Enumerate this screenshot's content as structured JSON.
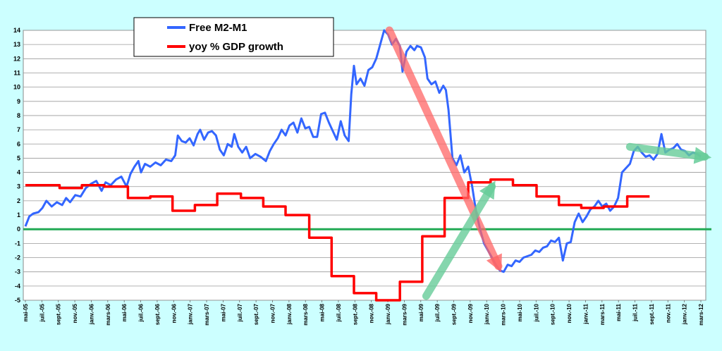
{
  "chart_data": {
    "type": "line",
    "title": "",
    "xlabel": "",
    "ylabel": "",
    "ylim": [
      -5,
      14
    ],
    "yticks": [
      14,
      13,
      12,
      11,
      10,
      9,
      8,
      7,
      6,
      5,
      4,
      3,
      2,
      1,
      0,
      -1,
      -2,
      -3,
      -4,
      -5
    ],
    "xticks": [
      "mai-05",
      "juil.-05",
      "sept.-05",
      "nov.-05",
      "janv.-06",
      "mars-06",
      "mai-06",
      "juil.-06",
      "sept.-06",
      "nov.-06",
      "janv.-07",
      "mars-07",
      "mai-07",
      "juil.-07",
      "sept.-07",
      "nov.-07",
      "janv.-08",
      "mars-08",
      "mai-08",
      "juil.-08",
      "sept.-08",
      "nov.-08",
      "janv.-09",
      "mars-09",
      "mai-09",
      "juil.-09",
      "sept.-09",
      "nov.-09",
      "janv.-10",
      "mars-10",
      "mai-10",
      "juil.-10",
      "sept.-10",
      "nov.-10",
      "janv.-11",
      "mars-11",
      "mai-11",
      "juil.-11",
      "sept.-11",
      "nov.-11",
      "janv.-12",
      "mars-12"
    ],
    "grid": true,
    "legend_position": "top-left",
    "zero_line_color": "#22aa55",
    "series": [
      {
        "name": "Free M2-M1",
        "color": "#3366ff",
        "points": [
          [
            0,
            0.2
          ],
          [
            0.3,
            0.9
          ],
          [
            0.6,
            1.1
          ],
          [
            1,
            1.2
          ],
          [
            1.3,
            1.5
          ],
          [
            1.6,
            2.0
          ],
          [
            2,
            1.6
          ],
          [
            2.4,
            1.9
          ],
          [
            2.8,
            1.7
          ],
          [
            3.1,
            2.2
          ],
          [
            3.4,
            1.9
          ],
          [
            3.8,
            2.4
          ],
          [
            4.2,
            2.3
          ],
          [
            4.6,
            2.9
          ],
          [
            5,
            3.2
          ],
          [
            5.4,
            3.4
          ],
          [
            5.8,
            2.7
          ],
          [
            6.1,
            3.3
          ],
          [
            6.5,
            3.1
          ],
          [
            6.9,
            3.5
          ],
          [
            7.3,
            3.7
          ],
          [
            7.7,
            3.0
          ],
          [
            8,
            3.9
          ],
          [
            8.3,
            4.4
          ],
          [
            8.6,
            4.8
          ],
          [
            8.8,
            4.0
          ],
          [
            9.1,
            4.6
          ],
          [
            9.5,
            4.4
          ],
          [
            9.9,
            4.7
          ],
          [
            10.3,
            4.5
          ],
          [
            10.7,
            4.9
          ],
          [
            11.1,
            4.8
          ],
          [
            11.4,
            5.2
          ],
          [
            11.6,
            6.6
          ],
          [
            11.9,
            6.2
          ],
          [
            12.2,
            6.1
          ],
          [
            12.5,
            6.4
          ],
          [
            12.8,
            5.9
          ],
          [
            13.1,
            6.7
          ],
          [
            13.3,
            7.0
          ],
          [
            13.6,
            6.3
          ],
          [
            13.9,
            6.8
          ],
          [
            14.2,
            6.9
          ],
          [
            14.5,
            6.6
          ],
          [
            14.8,
            5.6
          ],
          [
            15.1,
            5.2
          ],
          [
            15.4,
            6.0
          ],
          [
            15.7,
            5.8
          ],
          [
            15.9,
            6.7
          ],
          [
            16.2,
            5.8
          ],
          [
            16.5,
            5.4
          ],
          [
            16.8,
            5.8
          ],
          [
            17.1,
            5.0
          ],
          [
            17.5,
            5.3
          ],
          [
            17.9,
            5.1
          ],
          [
            18.3,
            4.8
          ],
          [
            18.6,
            5.5
          ],
          [
            18.9,
            6.0
          ],
          [
            19.2,
            6.4
          ],
          [
            19.5,
            7.0
          ],
          [
            19.8,
            6.6
          ],
          [
            20.1,
            7.3
          ],
          [
            20.4,
            7.5
          ],
          [
            20.7,
            6.8
          ],
          [
            21.0,
            7.8
          ],
          [
            21.3,
            7.1
          ],
          [
            21.6,
            7.2
          ],
          [
            21.9,
            6.5
          ],
          [
            22.2,
            6.5
          ],
          [
            22.5,
            8.1
          ],
          [
            22.8,
            8.2
          ],
          [
            23.1,
            7.5
          ],
          [
            23.4,
            6.9
          ],
          [
            23.7,
            6.3
          ],
          [
            24.0,
            7.6
          ],
          [
            24.3,
            6.6
          ],
          [
            24.6,
            6.2
          ],
          [
            24.8,
            9.5
          ],
          [
            25.0,
            11.5
          ],
          [
            25.2,
            10.2
          ],
          [
            25.5,
            10.6
          ],
          [
            25.8,
            10.1
          ],
          [
            26.1,
            11.2
          ],
          [
            26.4,
            11.4
          ],
          [
            26.7,
            12.0
          ],
          [
            27.0,
            13.0
          ],
          [
            27.3,
            14.0
          ],
          [
            27.6,
            13.7
          ],
          [
            27.9,
            13.0
          ],
          [
            28.2,
            13.4
          ],
          [
            28.5,
            12.9
          ],
          [
            28.7,
            11.1
          ],
          [
            29.0,
            12.5
          ],
          [
            29.3,
            12.9
          ],
          [
            29.6,
            12.6
          ],
          [
            29.8,
            12.9
          ],
          [
            30.1,
            12.8
          ],
          [
            30.4,
            12.1
          ],
          [
            30.6,
            10.6
          ],
          [
            30.9,
            10.2
          ],
          [
            31.2,
            10.4
          ],
          [
            31.5,
            9.6
          ],
          [
            31.8,
            10.1
          ],
          [
            32.0,
            9.8
          ],
          [
            32.2,
            8.4
          ],
          [
            32.5,
            5.0
          ],
          [
            32.8,
            4.5
          ],
          [
            33.1,
            5.2
          ],
          [
            33.4,
            4.0
          ],
          [
            33.7,
            4.4
          ],
          [
            34.0,
            3.0
          ],
          [
            34.3,
            1.2
          ],
          [
            34.6,
            0.0
          ],
          [
            34.9,
            -1.0
          ],
          [
            35.2,
            -1.5
          ],
          [
            35.5,
            -2.0
          ],
          [
            35.8,
            -2.5
          ],
          [
            36.1,
            -2.9
          ],
          [
            36.4,
            -3.0
          ],
          [
            36.7,
            -2.5
          ],
          [
            37.0,
            -2.6
          ],
          [
            37.3,
            -2.2
          ],
          [
            37.6,
            -2.3
          ],
          [
            37.9,
            -2.0
          ],
          [
            38.2,
            -1.9
          ],
          [
            38.5,
            -1.8
          ],
          [
            38.8,
            -1.5
          ],
          [
            39.1,
            -1.6
          ],
          [
            39.4,
            -1.3
          ],
          [
            39.7,
            -1.2
          ],
          [
            40.0,
            -0.8
          ],
          [
            40.3,
            -0.9
          ],
          [
            40.6,
            -0.6
          ],
          [
            40.9,
            -2.2
          ],
          [
            41.2,
            -1.0
          ],
          [
            41.5,
            -0.9
          ],
          [
            41.8,
            0.5
          ],
          [
            42.1,
            1.1
          ],
          [
            42.4,
            0.5
          ],
          [
            42.7,
            0.9
          ],
          [
            43.0,
            1.4
          ],
          [
            43.3,
            1.6
          ],
          [
            43.6,
            2.0
          ],
          [
            43.9,
            1.6
          ],
          [
            44.2,
            1.8
          ],
          [
            44.5,
            1.3
          ],
          [
            44.8,
            1.6
          ],
          [
            45.1,
            2.2
          ],
          [
            45.4,
            4.0
          ],
          [
            45.7,
            4.3
          ],
          [
            46.0,
            4.6
          ],
          [
            46.3,
            5.5
          ],
          [
            46.6,
            5.8
          ],
          [
            46.9,
            5.4
          ],
          [
            47.2,
            5.1
          ],
          [
            47.5,
            5.2
          ],
          [
            47.8,
            4.9
          ],
          [
            48.1,
            5.3
          ],
          [
            48.4,
            6.7
          ],
          [
            48.7,
            5.4
          ],
          [
            49.0,
            5.6
          ],
          [
            49.3,
            5.7
          ],
          [
            49.6,
            6.0
          ],
          [
            49.9,
            5.6
          ],
          [
            50.2,
            5.5
          ],
          [
            50.5,
            5.2
          ],
          [
            50.8,
            5.4
          ],
          [
            51.1,
            5.3
          ],
          [
            51.4,
            5.1
          ]
        ]
      },
      {
        "name": "yoy % GDP growth",
        "color": "#ff0000",
        "points": [
          [
            0,
            3.1
          ],
          [
            2.6,
            3.1
          ],
          [
            2.6,
            2.9
          ],
          [
            4.3,
            2.9
          ],
          [
            4.3,
            3.1
          ],
          [
            6.0,
            3.1
          ],
          [
            6.0,
            3.0
          ],
          [
            7.8,
            3.0
          ],
          [
            7.8,
            2.2
          ],
          [
            9.5,
            2.2
          ],
          [
            9.5,
            2.3
          ],
          [
            11.2,
            2.3
          ],
          [
            11.2,
            1.3
          ],
          [
            12.9,
            1.3
          ],
          [
            12.9,
            1.7
          ],
          [
            14.6,
            1.7
          ],
          [
            14.6,
            2.5
          ],
          [
            16.4,
            2.5
          ],
          [
            16.4,
            2.2
          ],
          [
            18.1,
            2.2
          ],
          [
            18.1,
            1.6
          ],
          [
            19.8,
            1.6
          ],
          [
            19.8,
            1.0
          ],
          [
            21.6,
            1.0
          ],
          [
            21.6,
            -0.6
          ],
          [
            23.3,
            -0.6
          ],
          [
            23.3,
            -3.3
          ],
          [
            25.0,
            -3.3
          ],
          [
            25.0,
            -4.5
          ],
          [
            26.7,
            -4.5
          ],
          [
            26.7,
            -5.0
          ],
          [
            28.5,
            -5.0
          ],
          [
            28.5,
            -3.7
          ],
          [
            30.2,
            -3.7
          ],
          [
            30.2,
            -0.5
          ],
          [
            31.9,
            -0.5
          ],
          [
            31.9,
            2.2
          ],
          [
            33.7,
            2.2
          ],
          [
            33.7,
            3.3
          ],
          [
            35.4,
            3.3
          ],
          [
            35.4,
            3.5
          ],
          [
            37.1,
            3.5
          ],
          [
            37.1,
            3.1
          ],
          [
            38.9,
            3.1
          ],
          [
            38.9,
            2.3
          ],
          [
            40.6,
            2.3
          ],
          [
            40.6,
            1.7
          ],
          [
            42.3,
            1.7
          ],
          [
            42.3,
            1.5
          ],
          [
            44.0,
            1.5
          ],
          [
            44.0,
            1.6
          ],
          [
            45.8,
            1.6
          ],
          [
            45.8,
            2.3
          ],
          [
            47.5,
            2.3
          ]
        ]
      }
    ],
    "annotations": [
      {
        "kind": "arrow",
        "color": "#ff6666",
        "from": [
          27.7,
          14.0
        ],
        "to": [
          36.0,
          -2.6
        ]
      },
      {
        "kind": "arrow",
        "color": "#66cc99",
        "from": [
          30.5,
          -4.7
        ],
        "to": [
          35.5,
          3.0
        ]
      },
      {
        "kind": "arrow",
        "color": "#66cc99",
        "from": [
          46.0,
          5.8
        ],
        "to": [
          51.7,
          5.1
        ]
      }
    ]
  }
}
